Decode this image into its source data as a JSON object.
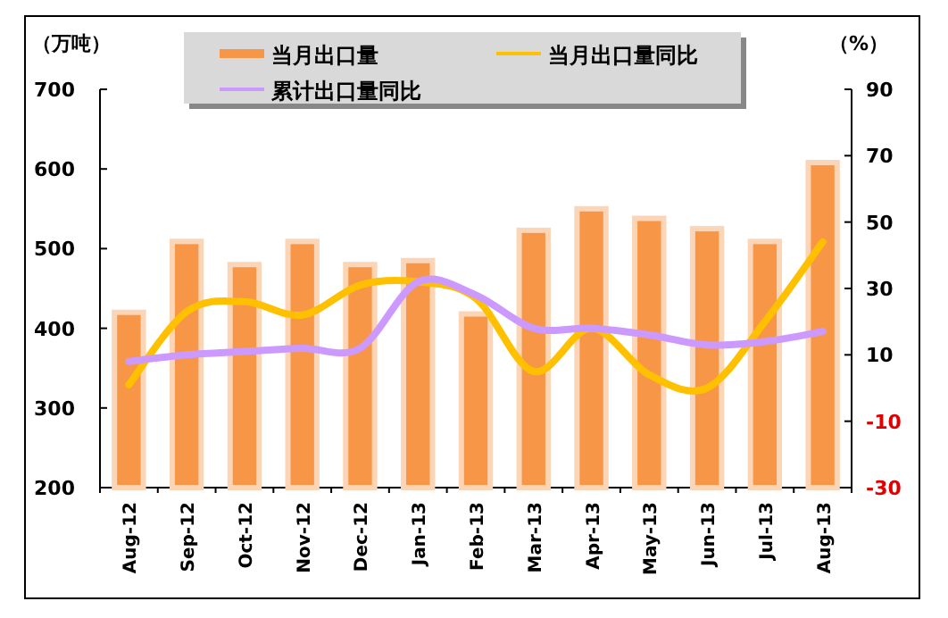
{
  "chart_data": {
    "type": "bar",
    "ylabel": "（万吨）",
    "y2label": "（%）",
    "categories": [
      "Aug-12",
      "Sep-12",
      "Oct-12",
      "Nov-12",
      "Dec-12",
      "Jan-13",
      "Feb-13",
      "Mar-13",
      "Apr-13",
      "May-13",
      "Jun-13",
      "Jul-13",
      "Aug-13"
    ],
    "series": [
      {
        "name": "当月出口量",
        "color": "#f79646",
        "values": [
          420,
          509,
          480,
          509,
          480,
          485,
          418,
          523,
          550,
          538,
          525,
          509,
          608
        ]
      },
      {
        "name": "当月出口量同比",
        "type": "line",
        "axis": "y2",
        "color": "#ffc000",
        "values": [
          1,
          23,
          26,
          22,
          31,
          32,
          27,
          5,
          18,
          4,
          0,
          20,
          44
        ]
      },
      {
        "name": "累计出口量同比",
        "type": "line",
        "axis": "y2",
        "color": "#cc99ff",
        "values": [
          8,
          10,
          11,
          12,
          12,
          32,
          28,
          18,
          18,
          16,
          13,
          14,
          17
        ]
      }
    ],
    "ylim": [
      200,
      700
    ],
    "yticks": [
      200,
      300,
      400,
      500,
      600,
      700
    ],
    "y2lim": [
      -30,
      90
    ],
    "y2ticks": [
      -30,
      -10,
      10,
      30,
      50,
      70,
      90
    ],
    "legend": "top",
    "grid": false
  }
}
